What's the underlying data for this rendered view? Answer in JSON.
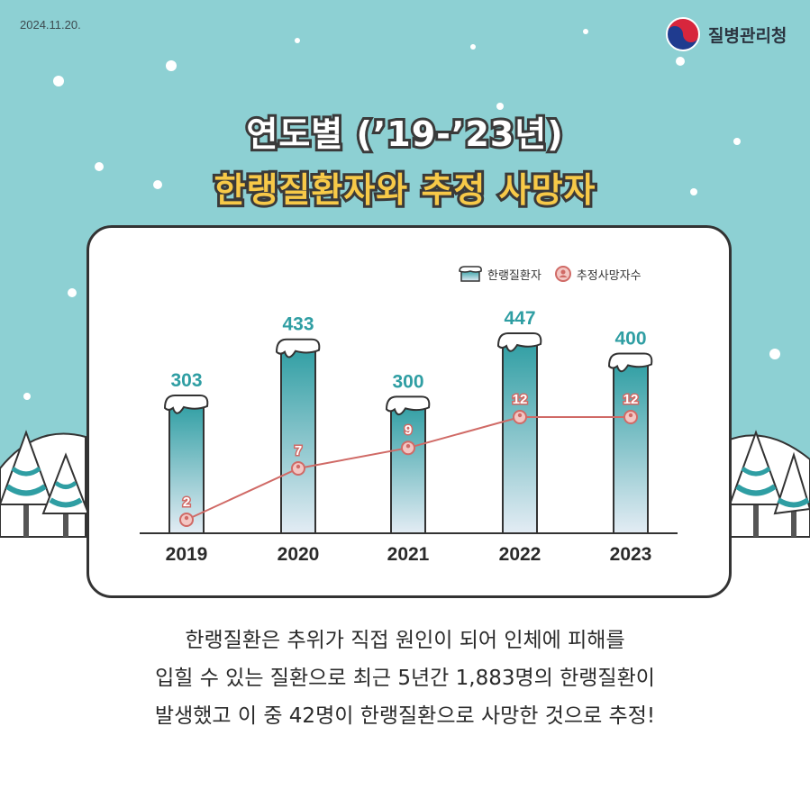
{
  "header": {
    "date": "2024.11.20.",
    "org_name": "질병관리청"
  },
  "title": {
    "line1": "연도별 (’19-’23년)",
    "line2": "한랭질환자와 추정 사망자"
  },
  "legend": {
    "patients": "한랭질환자",
    "deaths": "추정사망자수"
  },
  "chart_data": {
    "type": "bar",
    "categories": [
      "2019",
      "2020",
      "2021",
      "2022",
      "2023"
    ],
    "series": [
      {
        "name": "한랭질환자",
        "type": "bar",
        "values": [
          303,
          433,
          300,
          447,
          400
        ]
      },
      {
        "name": "추정사망자수",
        "type": "line",
        "values": [
          2,
          7,
          9,
          12,
          12
        ]
      }
    ],
    "ylim": [
      0,
      460
    ],
    "line_ylim": [
      0,
      15
    ],
    "grid": false,
    "legend_position": "top-right"
  },
  "caption": {
    "line1": "한랭질환은 추위가 직접 원인이 되어 인체에 피해를",
    "line2": "입힐 수 있는 질환으로 최근 5년간 1,883명의 한랭질환이",
    "line3": "발생했고 이 중 42명이 한랭질환으로 사망한 것으로 추정!"
  },
  "colors": {
    "sky": "#8dd0d3",
    "bar_top": "#2f9ea3",
    "bar_bottom": "#e3ecf4",
    "value_label": "#2f9ea3",
    "death_line": "#d06a66",
    "title_yellow": "#f7c948"
  }
}
